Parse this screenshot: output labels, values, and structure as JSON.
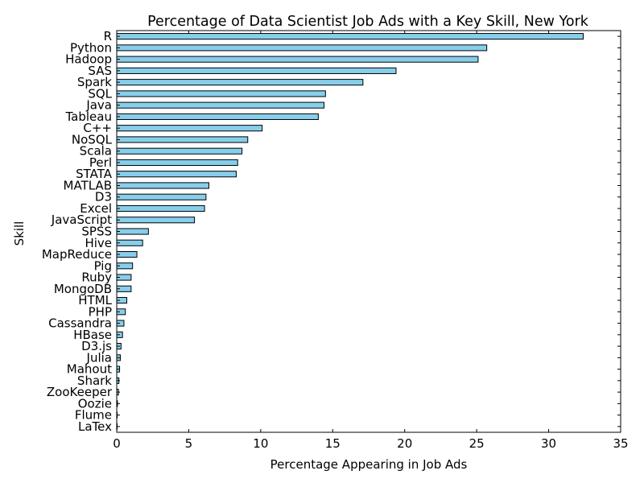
{
  "chart_data": {
    "type": "bar",
    "orientation": "horizontal",
    "title": "Percentage of Data Scientist Job Ads with a Key Skill, New York",
    "xlabel": "Percentage Appearing in Job Ads",
    "ylabel": "Skill",
    "xlim": [
      0,
      35
    ],
    "xticks": [
      0,
      5,
      10,
      15,
      20,
      25,
      30,
      35
    ],
    "grid": false,
    "bar_color": "#87ceeb",
    "edge_color": "#000000",
    "categories": [
      "R",
      "Python",
      "Hadoop",
      "SAS",
      "Spark",
      "SQL",
      "Java",
      "Tableau",
      "C++",
      "NoSQL",
      "Scala",
      "Perl",
      "STATA",
      "MATLAB",
      "D3",
      "Excel",
      "JavaScript",
      "SPSS",
      "Hive",
      "MapReduce",
      "Pig",
      "Ruby",
      "MongoDB",
      "HTML",
      "PHP",
      "Cassandra",
      "HBase",
      "D3.js",
      "Julia",
      "Mahout",
      "Shark",
      "ZooKeeper",
      "Oozie",
      "Flume",
      "LaTex"
    ],
    "values": [
      32.4,
      25.7,
      25.1,
      19.4,
      17.1,
      14.5,
      14.4,
      14.0,
      10.1,
      9.1,
      8.7,
      8.4,
      8.3,
      6.4,
      6.2,
      6.1,
      5.4,
      2.2,
      1.8,
      1.4,
      1.1,
      1.0,
      1.0,
      0.7,
      0.6,
      0.5,
      0.4,
      0.3,
      0.25,
      0.2,
      0.15,
      0.12,
      0.05,
      0.03,
      0.02
    ]
  }
}
